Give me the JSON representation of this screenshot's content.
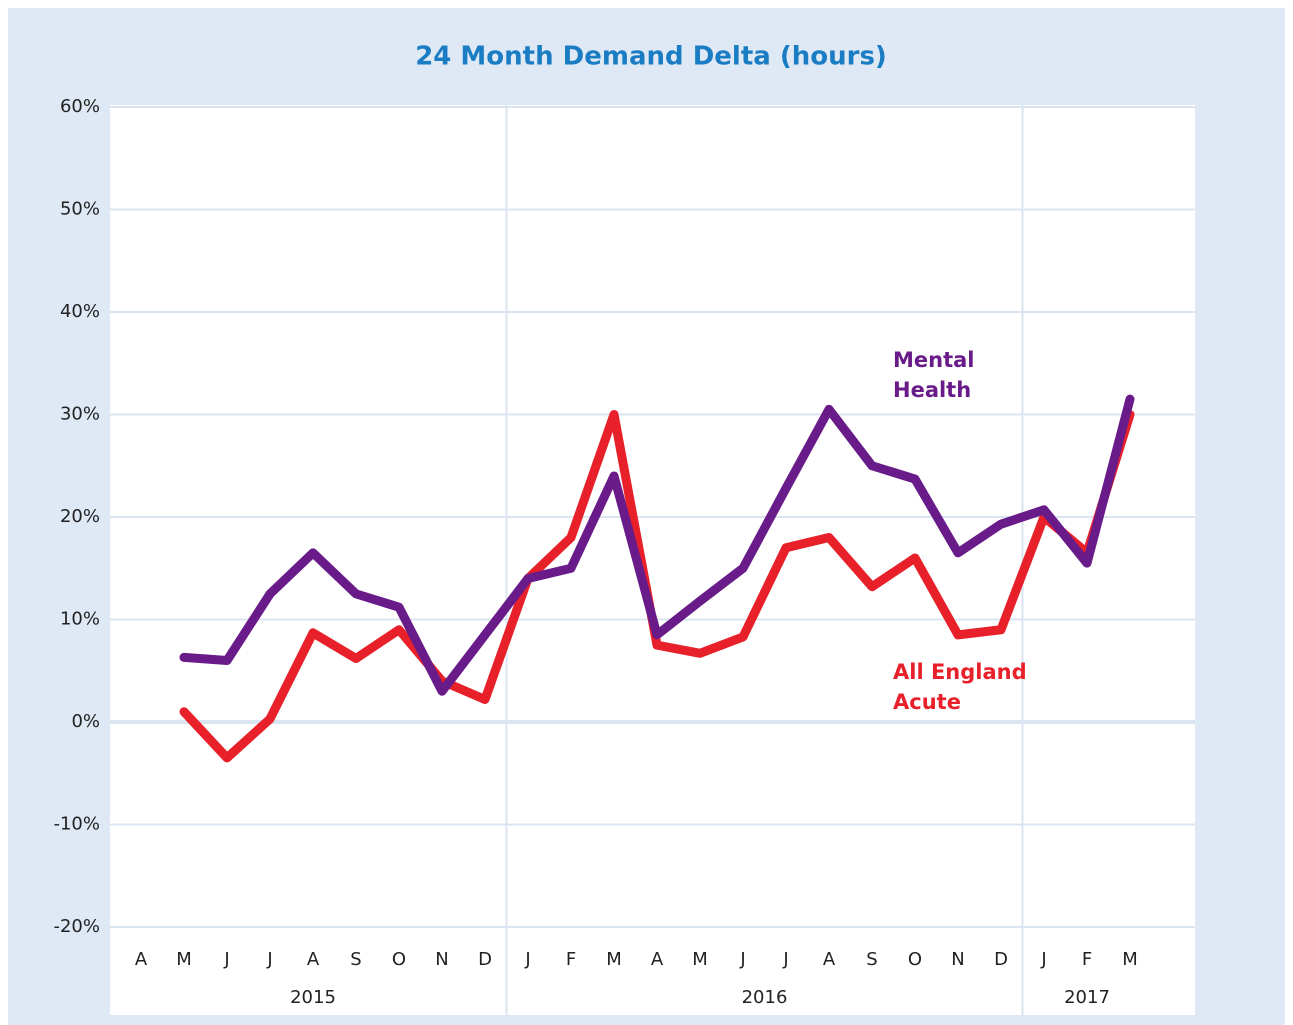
{
  "chart_data": {
    "type": "line",
    "title": "24 Month Demand Delta (hours)",
    "categories": [
      "A",
      "M",
      "J",
      "J",
      "A",
      "S",
      "O",
      "N",
      "D",
      "J",
      "F",
      "M",
      "A",
      "M",
      "J",
      "J",
      "A",
      "S",
      "O",
      "N",
      "D",
      "J",
      "F",
      "M"
    ],
    "x_groups": [
      {
        "label": "2015",
        "count": 9
      },
      {
        "label": "2016",
        "count": 12
      },
      {
        "label": "2017",
        "count": 3
      }
    ],
    "series": [
      {
        "name": "All England Acute",
        "color": "#e8202a",
        "values": [
          null,
          1.0,
          -3.5,
          0.3,
          8.7,
          6.2,
          9.0,
          4.0,
          2.2,
          14.0,
          18.0,
          30.0,
          7.5,
          6.7,
          8.3,
          17.0,
          18.0,
          13.2,
          16.0,
          8.5,
          9.0,
          20.0,
          16.5,
          30.0
        ]
      },
      {
        "name": "Mental Health",
        "color": "#6a1b8a",
        "values": [
          null,
          6.3,
          6.0,
          12.5,
          16.5,
          12.5,
          11.2,
          3.0,
          8.5,
          14.0,
          15.0,
          24.0,
          8.5,
          11.8,
          15.0,
          22.8,
          30.5,
          25.0,
          23.7,
          16.5,
          19.3,
          20.7,
          15.5,
          31.5
        ]
      }
    ],
    "ylim": [
      -20,
      60
    ],
    "yticks": [
      {
        "value": -20,
        "label": "-20%"
      },
      {
        "value": -10,
        "label": "-10%"
      },
      {
        "value": 0,
        "label": "0%"
      },
      {
        "value": 10,
        "label": "10%"
      },
      {
        "value": 20,
        "label": "20%"
      },
      {
        "value": 30,
        "label": "30%"
      },
      {
        "value": 40,
        "label": "40%"
      },
      {
        "value": 50,
        "label": "50%"
      },
      {
        "value": 60,
        "label": "60%"
      }
    ],
    "grid": true
  }
}
